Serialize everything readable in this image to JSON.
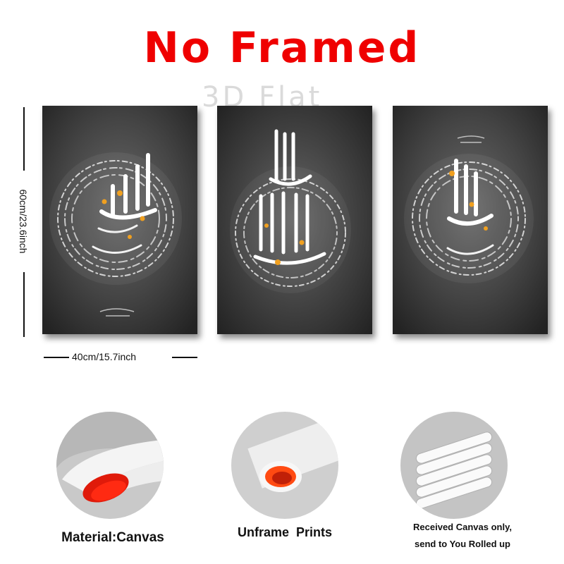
{
  "headline": {
    "text": "No Framed",
    "color": "#ef0000"
  },
  "watermark": "3D Flat",
  "dimensions": {
    "height": "60cm/23.6inch",
    "width": "40cm/15.7inch"
  },
  "panels": [
    {
      "motif": "calligraphy-round-left",
      "accent": "#f0a020"
    },
    {
      "motif": "calligraphy-allah-center",
      "accent": "#f0a020"
    },
    {
      "motif": "calligraphy-round-right",
      "accent": "#f0a020"
    }
  ],
  "features": [
    {
      "caption": "Material:Canvas"
    },
    {
      "caption": "Unframe  Prints"
    },
    {
      "caption_line1": "Received Canvas only,",
      "caption_line2": "send to You Rolled up"
    }
  ]
}
